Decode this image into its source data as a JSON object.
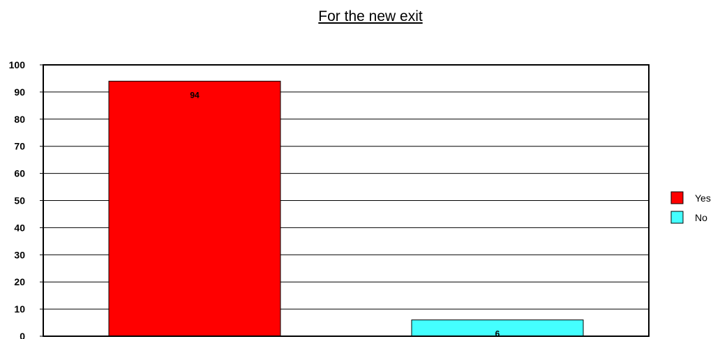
{
  "chart_data": {
    "type": "bar",
    "title": "For the new exit",
    "categories": [
      "Yes",
      "No"
    ],
    "values": [
      94,
      6
    ],
    "colors": [
      "#ff0000",
      "#44ffff"
    ],
    "ylim": [
      0,
      100
    ],
    "yticks": [
      0,
      10,
      20,
      30,
      40,
      50,
      60,
      70,
      80,
      90,
      100
    ],
    "grid": true,
    "legend_placement": "right",
    "legend": [
      {
        "label": "Yes",
        "color": "#ff0000"
      },
      {
        "label": "No",
        "color": "#44ffff"
      }
    ]
  }
}
